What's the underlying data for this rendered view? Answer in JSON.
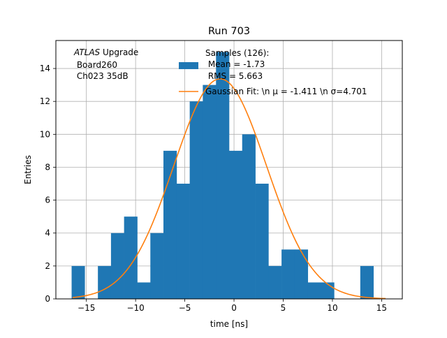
{
  "chart_data": {
    "type": "bar",
    "title": "Run 703",
    "xlabel": "time [ns]",
    "ylabel": "Entries",
    "xlim": [
      -18.1,
      17.1
    ],
    "ylim": [
      0,
      15.7
    ],
    "xticks": [
      -15,
      -10,
      -5,
      0,
      5,
      10,
      15
    ],
    "yticks": [
      0,
      2,
      4,
      6,
      8,
      10,
      12,
      14
    ],
    "grid": true,
    "bin_edges": [
      -16.5,
      -15.17,
      -13.83,
      -12.5,
      -11.17,
      -9.83,
      -8.5,
      -7.17,
      -5.83,
      -4.5,
      -3.17,
      -1.83,
      -0.5,
      0.83,
      2.17,
      3.5,
      4.83,
      6.17,
      7.5,
      8.83,
      10.17,
      11.5,
      12.83,
      14.17,
      15.5
    ],
    "counts": [
      2,
      0,
      2,
      4,
      5,
      1,
      4,
      9,
      7,
      12,
      13,
      15,
      9,
      10,
      7,
      2,
      3,
      3,
      1,
      1,
      0,
      0,
      2,
      0
    ],
    "fit": {
      "mu": -1.411,
      "sigma": 4.701,
      "amplitude": 13.37,
      "x_range": [
        -16.4,
        15.4
      ]
    },
    "bar_color": "#1f77b4",
    "fit_color": "#ff7f0e",
    "legend": {
      "placement": "upper-center",
      "samples_label_lines": [
        "Samples (126):",
        " Mean = -1.73",
        " RMS = 5.663"
      ],
      "fit_label": "Gaussian Fit: \\n μ = -1.411 \\n σ=4.701"
    },
    "annotation": {
      "atlas": "ATLAS",
      "upgrade": " Upgrade",
      "line2": " Board260",
      "line3": " Ch023 35dB"
    }
  }
}
